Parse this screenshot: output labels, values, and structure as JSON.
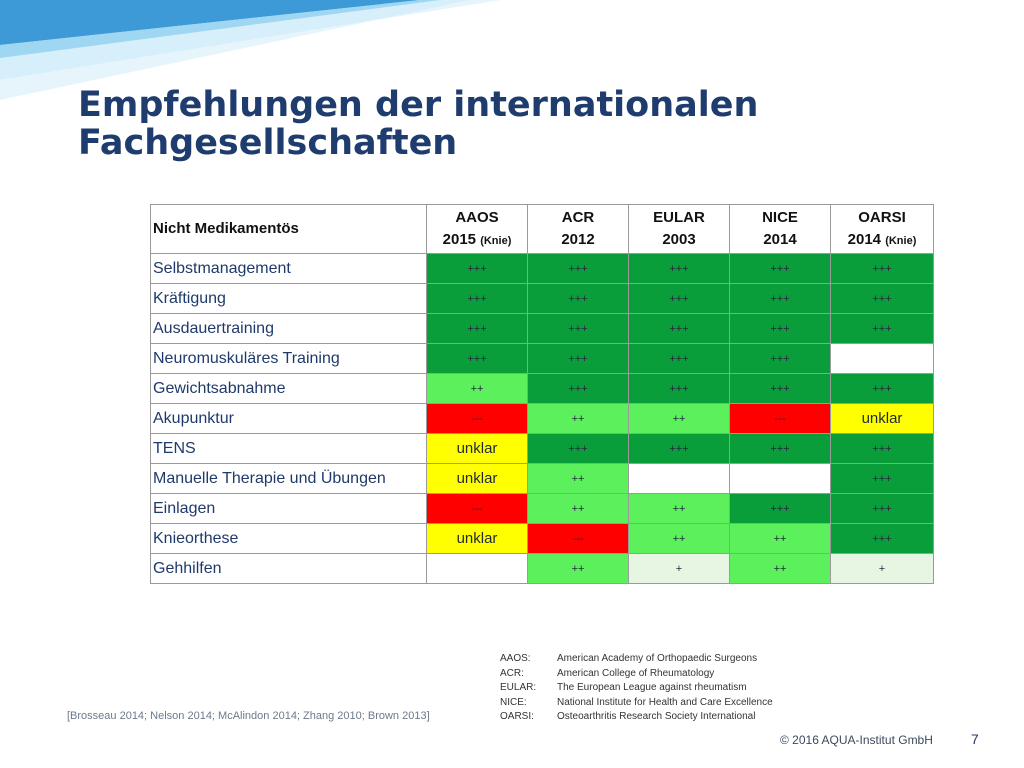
{
  "slide": {
    "title_line1": "Empfehlungen der internationalen",
    "title_line2": "Fachgesellschaften",
    "page_number": "7",
    "copyright": "© 2016 AQUA-Institut GmbH",
    "sources": "[Brosseau 2014; Nelson 2014; McAlindon 2014; Zhang 2010; Brown 2013]",
    "accent_colors": {
      "title": "#1f3c6e",
      "decor_light": "#bfe6f7",
      "decor_dark": "#3d9ad6"
    }
  },
  "table": {
    "corner_header": "Nicht Medikamentös",
    "columns": [
      {
        "name": "AAOS",
        "year": "2015",
        "note": "(Knie)"
      },
      {
        "name": "ACR",
        "year": "2012",
        "note": ""
      },
      {
        "name": "EULAR",
        "year": "2003",
        "note": ""
      },
      {
        "name": "NICE",
        "year": "2014",
        "note": ""
      },
      {
        "name": "OARSI",
        "year": "2014",
        "note": "(Knie)"
      }
    ],
    "rows": [
      {
        "label": "Selbstmanagement",
        "cells": [
          "+++",
          "+++",
          "+++",
          "+++",
          "+++"
        ],
        "levels": [
          "strong",
          "strong",
          "strong",
          "strong",
          "strong"
        ]
      },
      {
        "label": "Kräftigung",
        "cells": [
          "+++",
          "+++",
          "+++",
          "+++",
          "+++"
        ],
        "levels": [
          "strong",
          "strong",
          "strong",
          "strong",
          "strong"
        ]
      },
      {
        "label": "Ausdauertraining",
        "cells": [
          "+++",
          "+++",
          "+++",
          "+++",
          "+++"
        ],
        "levels": [
          "strong",
          "strong",
          "strong",
          "strong",
          "strong"
        ]
      },
      {
        "label": "Neuromuskuläres Training",
        "cells": [
          "+++",
          "+++",
          "+++",
          "+++",
          ""
        ],
        "levels": [
          "strong",
          "strong",
          "strong",
          "strong",
          "empty"
        ]
      },
      {
        "label": "Gewichtsabnahme",
        "cells": [
          "++",
          "+++",
          "+++",
          "+++",
          "+++"
        ],
        "levels": [
          "mid",
          "strong",
          "strong",
          "strong",
          "strong"
        ]
      },
      {
        "label": "Akupunktur",
        "cells": [
          "---",
          "++",
          "++",
          "---",
          "unklar"
        ],
        "levels": [
          "neg",
          "mid",
          "mid",
          "neg",
          "unclear"
        ]
      },
      {
        "label": "TENS",
        "cells": [
          "unklar",
          "+++",
          "+++",
          "+++",
          "+++"
        ],
        "levels": [
          "unclear",
          "strong",
          "strong",
          "strong",
          "strong"
        ]
      },
      {
        "label": "Manuelle Therapie und Übungen",
        "cells": [
          "unklar",
          "++",
          "",
          "",
          "+++"
        ],
        "levels": [
          "unclear",
          "mid",
          "empty",
          "empty",
          "strong"
        ]
      },
      {
        "label": "Einlagen",
        "cells": [
          "---",
          "++",
          "++",
          "+++",
          "+++"
        ],
        "levels": [
          "neg",
          "mid",
          "mid",
          "strong",
          "strong"
        ]
      },
      {
        "label": "Knieorthese",
        "cells": [
          "unklar",
          "---",
          "++",
          "++",
          "+++"
        ],
        "levels": [
          "unclear",
          "neg",
          "mid",
          "mid",
          "strong"
        ]
      },
      {
        "label": "Gehhilfen",
        "cells": [
          "",
          "++",
          "+",
          "++",
          "+"
        ],
        "levels": [
          "empty",
          "mid",
          "weak",
          "mid",
          "weak"
        ]
      }
    ],
    "level_colors": {
      "strong": "#0a9e3a",
      "mid": "#5cf05c",
      "weak": "#e7f6e3",
      "unclear": "#ffff00",
      "neg": "#ff0000",
      "empty": "#ffffff"
    }
  },
  "abbreviations": [
    {
      "code": "AAOS:",
      "meaning": "American Academy of Orthopaedic Surgeons"
    },
    {
      "code": "ACR:",
      "meaning": "American College of Rheumatology"
    },
    {
      "code": "EULAR:",
      "meaning": "The European League against rheumatism"
    },
    {
      "code": "NICE:",
      "meaning": "National Institute for Health and Care Excellence"
    },
    {
      "code": "OARSI:",
      "meaning": "Osteoarthritis Research Society International"
    }
  ]
}
